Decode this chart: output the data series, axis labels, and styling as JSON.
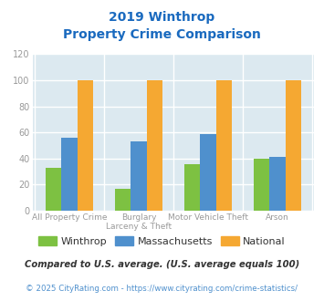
{
  "title_line1": "2019 Winthrop",
  "title_line2": "Property Crime Comparison",
  "category_labels_line1": [
    "All Property Crime",
    "Burglary",
    "Motor Vehicle Theft",
    "Arson"
  ],
  "category_labels_line2": [
    "",
    "Larceny & Theft",
    "",
    ""
  ],
  "winthrop": [
    33,
    17,
    36,
    40
  ],
  "massachusetts": [
    56,
    53,
    59,
    41
  ],
  "national": [
    100,
    100,
    100,
    100
  ],
  "colors": {
    "winthrop": "#7dc142",
    "massachusetts": "#4f90cd",
    "national": "#f5a832"
  },
  "ylim": [
    0,
    120
  ],
  "yticks": [
    0,
    20,
    40,
    60,
    80,
    100,
    120
  ],
  "plot_bg": "#dce9f0",
  "title_color": "#1a6abf",
  "footnote1": "Compared to U.S. average. (U.S. average equals 100)",
  "footnote2": "© 2025 CityRating.com - https://www.cityrating.com/crime-statistics/",
  "footnote1_color": "#333333",
  "footnote2_color": "#4f90cd",
  "legend_labels": [
    "Winthrop",
    "Massachusetts",
    "National"
  ],
  "legend_text_color": "#333333",
  "tick_color": "#999999",
  "grid_color": "#ffffff"
}
